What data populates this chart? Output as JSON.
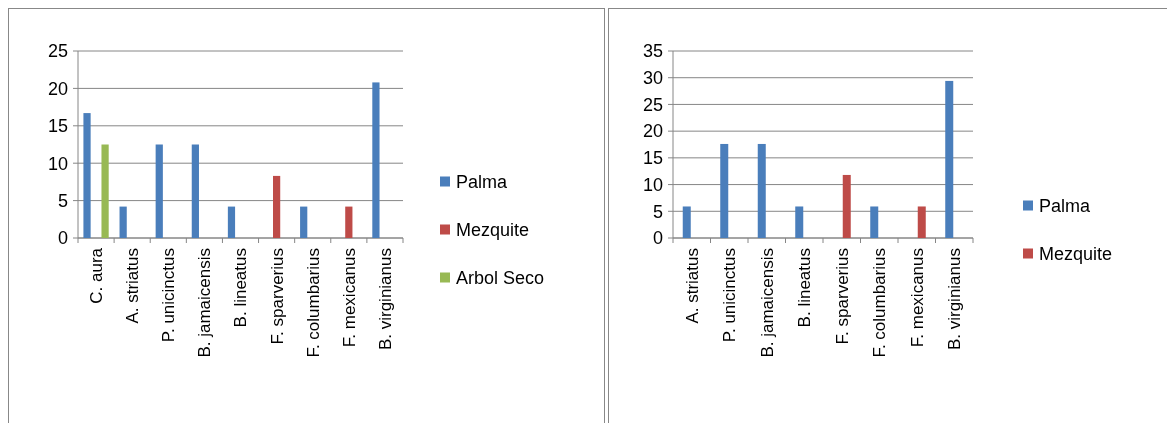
{
  "chart_data": [
    {
      "type": "bar",
      "categories": [
        "C. aura",
        "A. striatus",
        "P. unicinctus",
        "B. jamaicensis",
        "B. lineatus",
        "F. sparverius",
        "F. columbarius",
        "F. mexicanus",
        "B. virginianus"
      ],
      "series": [
        {
          "name": "Palma",
          "color": "#4a7ebb",
          "values": [
            16.7,
            4.2,
            12.5,
            12.5,
            4.2,
            null,
            4.2,
            null,
            20.8
          ]
        },
        {
          "name": "Mezquite",
          "color": "#be4b48",
          "values": [
            null,
            null,
            null,
            null,
            null,
            8.3,
            null,
            4.2,
            null
          ]
        },
        {
          "name": "Arbol Seco",
          "color": "#98b954",
          "values": [
            12.5,
            null,
            null,
            null,
            null,
            null,
            null,
            null,
            null
          ]
        }
      ],
      "ylim": [
        0,
        25
      ],
      "yticks": [
        0,
        5,
        10,
        15,
        20,
        25
      ],
      "grid": "y",
      "legend": "right"
    },
    {
      "type": "bar",
      "categories": [
        "A. striatus",
        "P. unicinctus",
        "B. jamaicensis",
        "B. lineatus",
        "F. sparverius",
        "F. columbarius",
        "F. mexicanus",
        "B. virginianus"
      ],
      "series": [
        {
          "name": "Palma",
          "color": "#4a7ebb",
          "values": [
            5.9,
            17.6,
            17.6,
            5.9,
            null,
            5.9,
            null,
            29.4
          ]
        },
        {
          "name": "Mezquite",
          "color": "#be4b48",
          "values": [
            null,
            null,
            null,
            null,
            11.8,
            null,
            5.9,
            null
          ]
        }
      ],
      "ylim": [
        0,
        35
      ],
      "yticks": [
        0,
        5,
        10,
        15,
        20,
        25,
        30,
        35
      ],
      "grid": "y",
      "legend": "right"
    }
  ]
}
